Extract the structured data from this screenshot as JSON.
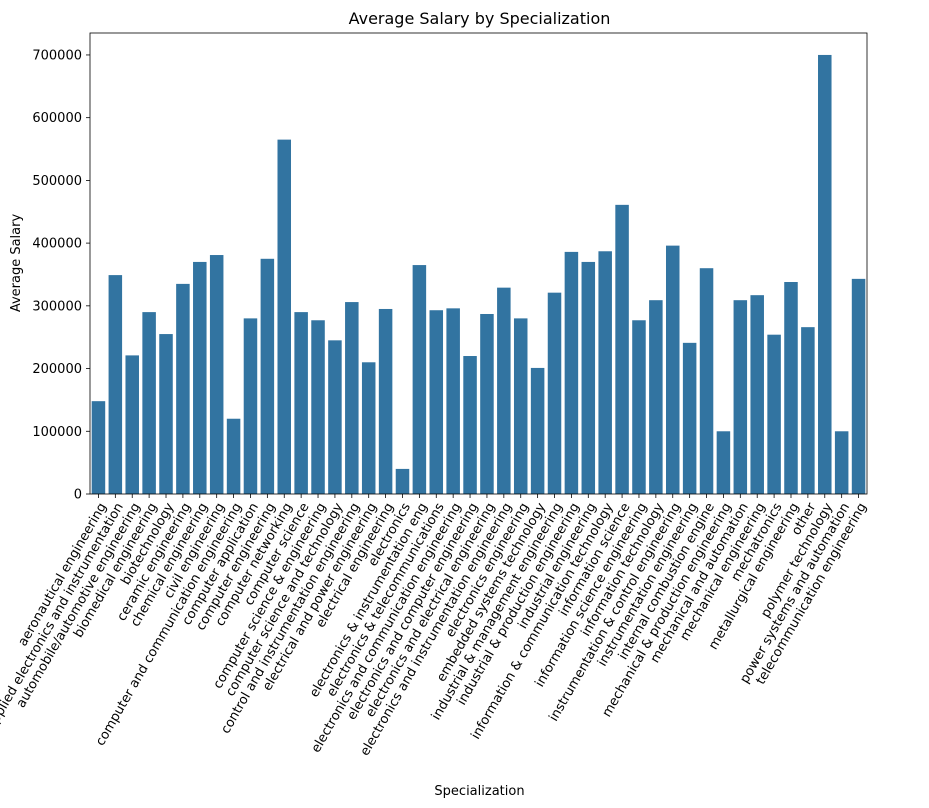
{
  "chart_data": {
    "type": "bar",
    "title": "Average Salary by Specialization",
    "xlabel": "Specialization",
    "ylabel": "Average Salary",
    "ylim": [
      0,
      735000
    ],
    "yticks": [
      0,
      100000,
      200000,
      300000,
      400000,
      500000,
      600000,
      700000
    ],
    "grid": false,
    "legend": "none",
    "bar_color": "#3274a1",
    "categories": [
      "aeronautical engineering",
      "applied electronics and instrumentation",
      "automobile/automotive engineering",
      "biomedical engineering",
      "biotechnology",
      "ceramic engineering",
      "chemical engineering",
      "civil engineering",
      "computer and communication engineering",
      "computer application",
      "computer engineering",
      "computer networking",
      "computer science",
      "computer science & engineering",
      "computer science and technology",
      "control and instrumentation engineering",
      "electrical and power engineering",
      "electrical engineering",
      "electronics",
      "electronics & instrumentation eng",
      "electronics & telecommunications",
      "electronics and communication engineering",
      "electronics and computer engineering",
      "electronics and electrical engineering",
      "electronics and instrumentation engineering",
      "electronics engineering",
      "embedded systems technology",
      "industrial & management engineering",
      "industrial & production engineering",
      "industrial engineering",
      "information & communication technology",
      "information science",
      "information science engineering",
      "information technology",
      "instrumentation & control engineering",
      "instrumentation engineering",
      "internal combustion engine",
      "mechanical & production engineering",
      "mechanical and automation",
      "mechanical engineering",
      "mechatronics",
      "metallurgical engineering",
      "other",
      "polymer technology",
      "power systems and automation",
      "telecommunication engineering"
    ],
    "values": [
      148000,
      349000,
      221000,
      290000,
      255000,
      335000,
      370000,
      381000,
      120000,
      280000,
      375000,
      565000,
      290000,
      277000,
      245000,
      306000,
      210000,
      295000,
      40000,
      365000,
      293000,
      296000,
      220000,
      287000,
      329000,
      280000,
      201000,
      321000,
      386000,
      370000,
      387000,
      461000,
      277000,
      309000,
      396000,
      241000,
      360000,
      100000,
      309000,
      317000,
      254000,
      338000,
      266000,
      700000,
      100000,
      343000
    ]
  }
}
